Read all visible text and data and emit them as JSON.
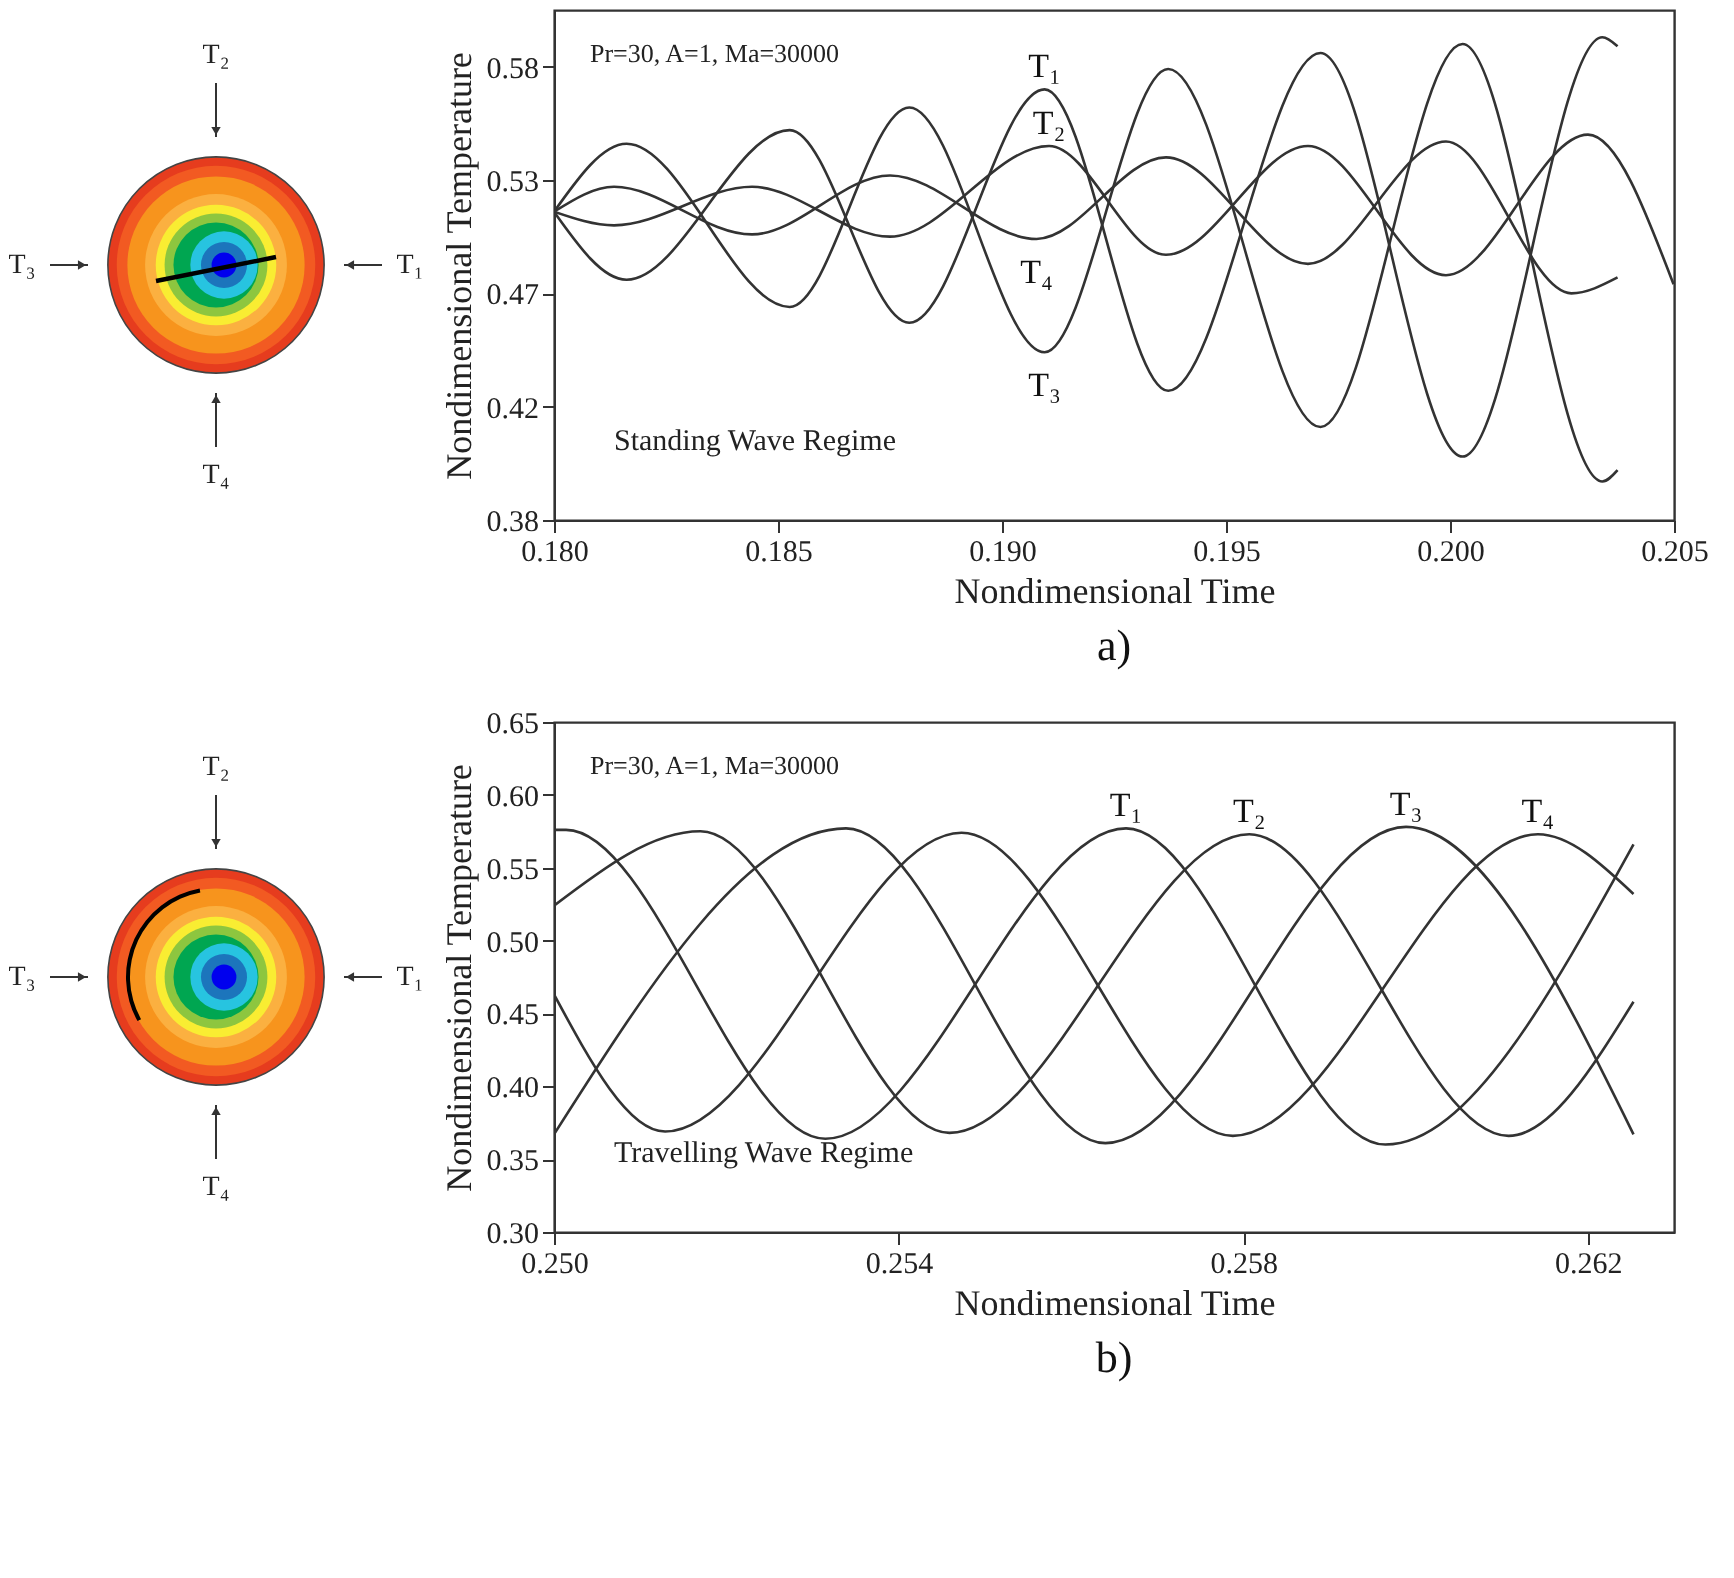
{
  "chart_data": [
    {
      "type": "line",
      "xlabel": "Nondimensional Time",
      "ylabel": "Nondimensional Temperature",
      "xlim": [
        0.18,
        0.205
      ],
      "ylim": [
        0.375,
        0.6
      ],
      "xticks": [
        {
          "value": 0.18,
          "label": "0.180"
        },
        0.185,
        {
          "value": 0.19,
          "label": "0.190"
        },
        0.195,
        {
          "value": 0.2,
          "label": "0.200"
        },
        0.205
      ],
      "yticks": [
        {
          "value": 0.375,
          "label": "0.38"
        },
        {
          "value": 0.425,
          "label": "0.42"
        },
        {
          "value": 0.475,
          "label": "0.47"
        },
        {
          "value": 0.525,
          "label": "0.53"
        },
        {
          "value": 0.575,
          "label": "0.58"
        }
      ],
      "marker": "none",
      "series": [
        {
          "name": "T₁",
          "color": "#333333",
          "x": [
            0.18,
            0.18162,
            0.18526,
            0.18793,
            0.19095,
            0.19371,
            0.19711,
            0.20028,
            0.2034,
            0.20374
          ],
          "values": [
            0.511,
            0.481,
            0.547,
            0.462,
            0.565,
            0.432,
            0.581,
            0.403,
            0.588,
            0.584
          ]
        },
        {
          "name": "T₂",
          "color": "#333333",
          "x": [
            0.18,
            0.18134,
            0.18442,
            0.1875,
            0.19105,
            0.19366,
            0.19683,
            0.19991,
            0.20308,
            0.20499
          ],
          "values": [
            0.511,
            0.505,
            0.522,
            0.5,
            0.54,
            0.492,
            0.54,
            0.483,
            0.545,
            0.479
          ]
        },
        {
          "name": "T₃",
          "color": "#333333",
          "x": [
            0.18,
            0.18162,
            0.18526,
            0.18793,
            0.19095,
            0.19371,
            0.19711,
            0.20028,
            0.2034,
            0.20374
          ],
          "values": [
            0.511,
            0.541,
            0.469,
            0.557,
            0.449,
            0.574,
            0.416,
            0.585,
            0.392,
            0.397
          ]
        },
        {
          "name": "T₄",
          "color": "#333333",
          "x": [
            0.18,
            0.18134,
            0.18442,
            0.1875,
            0.19077,
            0.19366,
            0.19683,
            0.19991,
            0.20271,
            0.20374
          ],
          "values": [
            0.511,
            0.522,
            0.501,
            0.527,
            0.499,
            0.535,
            0.488,
            0.542,
            0.475,
            0.482
          ]
        }
      ],
      "annotations": [
        "Pr=30, A=1, Ma=30000",
        "Standing Wave Regime",
        "a)"
      ]
    },
    {
      "type": "line",
      "xlabel": "Nondimensional Time",
      "ylabel": "Nondimensional Temperature",
      "xlim": [
        0.25,
        0.263
      ],
      "ylim": [
        0.3,
        0.65
      ],
      "xticks": [
        {
          "value": 0.25,
          "label": "0.250"
        },
        0.254,
        0.258,
        0.262
      ],
      "yticks": [
        {
          "value": 0.3,
          "label": "0.30"
        },
        0.35,
        {
          "value": 0.4,
          "label": "0.40"
        },
        0.45,
        {
          "value": 0.5,
          "label": "0.50"
        },
        0.55,
        {
          "value": 0.6,
          "label": "0.60"
        },
        0.65
      ],
      "marker": "none",
      "series": [
        {
          "name": "T₁",
          "color": "#333333",
          "x": [
            0.25,
            0.25014,
            0.25315,
            0.25664,
            0.25965,
            0.26253
          ],
          "values": [
            0.576,
            0.576,
            0.364,
            0.577,
            0.36,
            0.566
          ]
        },
        {
          "name": "T₂",
          "color": "#333333",
          "x": [
            0.25,
            0.2517,
            0.25459,
            0.25807,
            0.26108,
            0.26253
          ],
          "values": [
            0.524,
            0.575,
            0.368,
            0.573,
            0.366,
            0.458
          ]
        },
        {
          "name": "T₃",
          "color": "#333333",
          "x": [
            0.25,
            0.25339,
            0.2564,
            0.25989,
            0.26253
          ],
          "values": [
            0.367,
            0.577,
            0.361,
            0.578,
            0.367
          ]
        },
        {
          "name": "T₄",
          "color": "#333333",
          "x": [
            0.25,
            0.25129,
            0.25473,
            0.25788,
            0.26142,
            0.26253
          ],
          "values": [
            0.463,
            0.369,
            0.574,
            0.366,
            0.573,
            0.532
          ]
        }
      ],
      "annotations": [
        "Pr=30, A=1, Ma=30000",
        "Travelling Wave Regime",
        "b)"
      ]
    }
  ]
}
